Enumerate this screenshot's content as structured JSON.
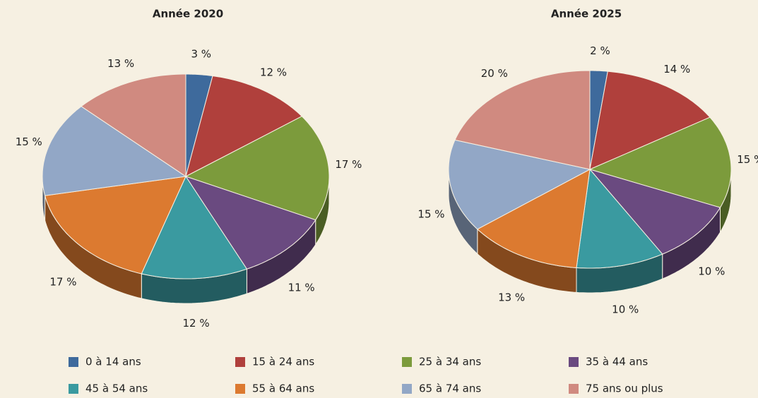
{
  "chart_data": [
    {
      "type": "pie",
      "title": "Année 2020",
      "categories": [
        "0 à 14 ans",
        "15 à 24 ans",
        "25 à 34 ans",
        "35 à 44 ans",
        "45 à 54 ans",
        "55 à 64 ans",
        "65 à 74 ans",
        "75 ans ou plus"
      ],
      "colors": [
        "#3e6a9c",
        "#b0403c",
        "#7c9b3c",
        "#6a4a80",
        "#3a9aa0",
        "#dc7a30",
        "#92a7c6",
        "#d08a80"
      ],
      "values": [
        3,
        12,
        17,
        11,
        12,
        17,
        15,
        13
      ],
      "value_labels": [
        "3 %",
        "12 %",
        "17 %",
        "11 %",
        "12 %",
        "17 %",
        "15 %",
        "13 %"
      ]
    },
    {
      "type": "pie",
      "title": "Année 2025",
      "values": [
        2,
        14,
        15,
        10,
        10,
        13,
        15,
        20
      ],
      "value_labels": [
        "2 %",
        "14 %",
        "15 %",
        "10 %",
        "10 %",
        "13 %",
        "15 %",
        "20 %"
      ]
    }
  ]
}
